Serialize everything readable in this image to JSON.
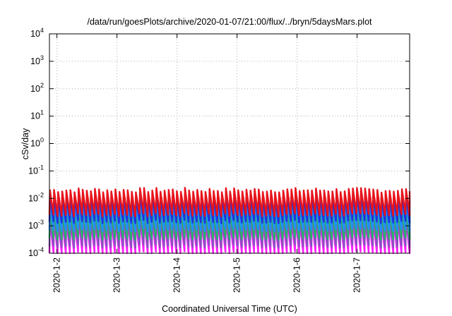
{
  "chart_data": {
    "type": "line",
    "title": "/data/run/goesPlots/archive/2020-01-07/21:00/flux/../bryn/5daysMars.plot",
    "xlabel": "Coordinated Universal Time (UTC)",
    "ylabel": "cSv/day",
    "yscale": "log",
    "ylim": [
      0.0001,
      10000
    ],
    "xlim": [
      "2020-01-01T21:00",
      "2020-01-07T21:00"
    ],
    "grid": true,
    "y_ticks": [
      {
        "base": "10",
        "exp": "4",
        "value": 10000
      },
      {
        "base": "10",
        "exp": "3",
        "value": 1000
      },
      {
        "base": "10",
        "exp": "2",
        "value": 100
      },
      {
        "base": "10",
        "exp": "1",
        "value": 10
      },
      {
        "base": "10",
        "exp": "0",
        "value": 1
      },
      {
        "base": "10",
        "exp": "-1",
        "value": 0.1
      },
      {
        "base": "10",
        "exp": "-2",
        "value": 0.01
      },
      {
        "base": "10",
        "exp": "-3",
        "value": 0.001
      },
      {
        "base": "10",
        "exp": "-4",
        "value": 0.0001
      }
    ],
    "x_ticks": [
      {
        "label": "2020-1-2",
        "date": "2020-01-02T00:00"
      },
      {
        "label": "2020-1-3",
        "date": "2020-01-03T00:00"
      },
      {
        "label": "2020-1-4",
        "date": "2020-01-04T00:00"
      },
      {
        "label": "2020-1-5",
        "date": "2020-01-05T00:00"
      },
      {
        "label": "2020-1-6",
        "date": "2020-01-06T00:00"
      },
      {
        "label": "2020-1-7",
        "date": "2020-01-07T00:00"
      }
    ],
    "series": [
      {
        "color": "#e8141c",
        "peak": 0.02,
        "trough": 0.0025
      },
      {
        "color": "#2233d8",
        "peak": 0.012,
        "trough": 0.0014
      },
      {
        "color": "#1e90ff",
        "peak": 0.007,
        "trough": 0.0007
      },
      {
        "color": "#2ab06a",
        "peak": 0.0035,
        "trough": 0.00035
      },
      {
        "color": "#8a4fc0",
        "peak": 0.0022,
        "trough": 0.00018
      },
      {
        "color": "#ff1cff",
        "peak": 0.0016,
        "trough": 0.0001
      }
    ]
  }
}
